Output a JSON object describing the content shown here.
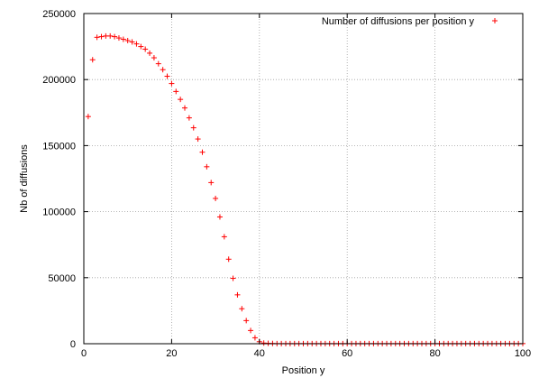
{
  "chart_data": {
    "type": "scatter",
    "title": "",
    "xlabel": "Position y",
    "ylabel": "Nb of diffusions",
    "xlim": [
      0,
      100
    ],
    "ylim": [
      0,
      250000
    ],
    "x_ticks": [
      0,
      20,
      40,
      60,
      80,
      100
    ],
    "y_ticks": [
      0,
      50000,
      100000,
      150000,
      200000,
      250000
    ],
    "x_tick_labels": [
      "0",
      "20",
      "40",
      "60",
      "80",
      "100"
    ],
    "y_tick_labels": [
      "0",
      "50000",
      "100000",
      "150000",
      "200000",
      "250000"
    ],
    "grid": true,
    "legend_position": "top-right",
    "marker": "+",
    "series": [
      {
        "name": "Number of diffusions per position y",
        "color": "#ff0000",
        "x": [
          1,
          2,
          3,
          4,
          5,
          6,
          7,
          8,
          9,
          10,
          11,
          12,
          13,
          14,
          15,
          16,
          17,
          18,
          19,
          20,
          21,
          22,
          23,
          24,
          25,
          26,
          27,
          28,
          29,
          30,
          31,
          32,
          33,
          34,
          35,
          36,
          37,
          38,
          39,
          40,
          41,
          42,
          43,
          44,
          45,
          46,
          47,
          48,
          49,
          50,
          51,
          52,
          53,
          54,
          55,
          56,
          57,
          58,
          59,
          60,
          61,
          62,
          63,
          64,
          65,
          66,
          67,
          68,
          69,
          70,
          71,
          72,
          73,
          74,
          75,
          76,
          77,
          78,
          79,
          80,
          81,
          82,
          83,
          84,
          85,
          86,
          87,
          88,
          89,
          90,
          91,
          92,
          93,
          94,
          95,
          96,
          97,
          98,
          99,
          100
        ],
        "y": [
          172000,
          215000,
          232000,
          232500,
          233000,
          233000,
          232500,
          231500,
          230500,
          229500,
          228500,
          227000,
          225000,
          223000,
          220000,
          216500,
          212000,
          207500,
          202500,
          197000,
          191000,
          185000,
          178500,
          171000,
          163500,
          155000,
          145000,
          134000,
          122000,
          110000,
          96000,
          81000,
          64000,
          49500,
          37000,
          26500,
          17500,
          10000,
          4500,
          1500,
          500,
          300,
          200,
          100,
          100,
          100,
          100,
          100,
          100,
          100,
          100,
          100,
          100,
          100,
          100,
          100,
          100,
          100,
          100,
          100,
          100,
          100,
          100,
          100,
          100,
          100,
          100,
          100,
          100,
          100,
          100,
          100,
          100,
          100,
          100,
          100,
          100,
          100,
          100,
          100,
          100,
          100,
          100,
          100,
          100,
          100,
          100,
          100,
          100,
          100,
          100,
          100,
          100,
          100,
          100,
          100,
          100,
          100,
          100,
          100
        ]
      }
    ]
  }
}
